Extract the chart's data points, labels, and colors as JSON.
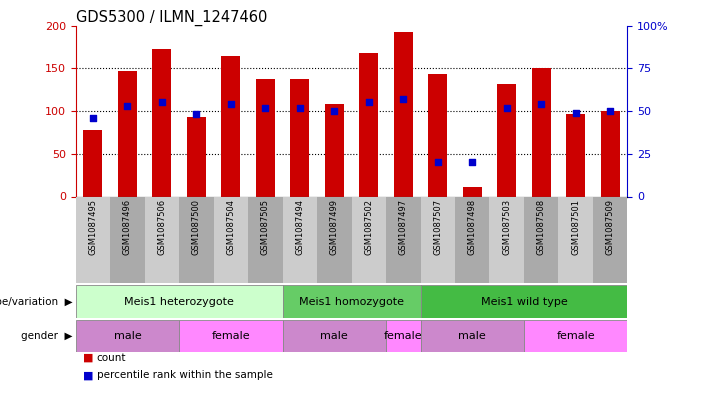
{
  "title": "GDS5300 / ILMN_1247460",
  "samples": [
    "GSM1087495",
    "GSM1087496",
    "GSM1087506",
    "GSM1087500",
    "GSM1087504",
    "GSM1087505",
    "GSM1087494",
    "GSM1087499",
    "GSM1087502",
    "GSM1087497",
    "GSM1087507",
    "GSM1087498",
    "GSM1087503",
    "GSM1087508",
    "GSM1087501",
    "GSM1087509"
  ],
  "counts": [
    78,
    147,
    173,
    93,
    164,
    138,
    138,
    108,
    168,
    192,
    143,
    11,
    132,
    150,
    97,
    100
  ],
  "percentiles": [
    46,
    53,
    55,
    48,
    54,
    52,
    52,
    50,
    55,
    57,
    20,
    20,
    52,
    54,
    49,
    50
  ],
  "ylim_left": [
    0,
    200
  ],
  "ylim_right": [
    0,
    100
  ],
  "yticks_left": [
    0,
    50,
    100,
    150,
    200
  ],
  "yticks_right": [
    0,
    25,
    50,
    75,
    100
  ],
  "bar_color": "#cc0000",
  "dot_color": "#0000cc",
  "left_axis_color": "#cc0000",
  "right_axis_color": "#0000cc",
  "tick_bg_even": "#cccccc",
  "tick_bg_odd": "#aaaaaa",
  "genotype_groups": [
    {
      "label": "Meis1 heterozygote",
      "start": 0,
      "end": 5,
      "color": "#ccffcc"
    },
    {
      "label": "Meis1 homozygote",
      "start": 6,
      "end": 9,
      "color": "#66cc66"
    },
    {
      "label": "Meis1 wild type",
      "start": 10,
      "end": 15,
      "color": "#44bb44"
    }
  ],
  "gender_groups": [
    {
      "label": "male",
      "start": 0,
      "end": 2,
      "color": "#cc88cc"
    },
    {
      "label": "female",
      "start": 3,
      "end": 5,
      "color": "#ff88ff"
    },
    {
      "label": "male",
      "start": 6,
      "end": 8,
      "color": "#cc88cc"
    },
    {
      "label": "female",
      "start": 9,
      "end": 9,
      "color": "#ff88ff"
    },
    {
      "label": "male",
      "start": 10,
      "end": 12,
      "color": "#cc88cc"
    },
    {
      "label": "female",
      "start": 13,
      "end": 15,
      "color": "#ff88ff"
    }
  ]
}
